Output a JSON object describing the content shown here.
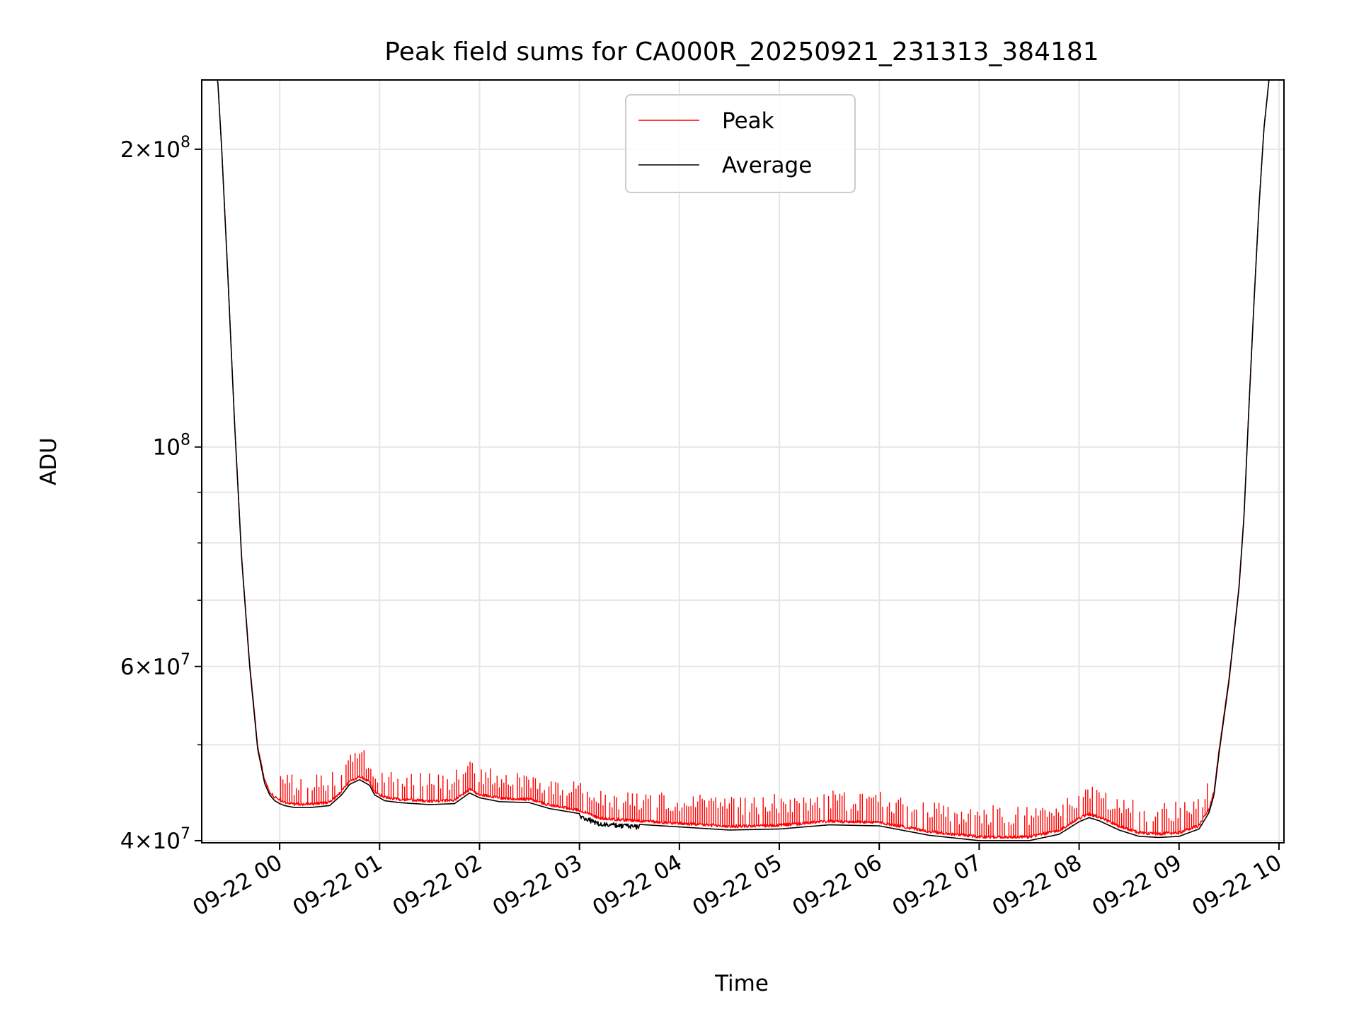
{
  "chart_data": {
    "type": "line",
    "title": "Peak field sums for CA000R_20250921_231313_384181",
    "xlabel": "Time",
    "ylabel": "ADU",
    "yscale": "log",
    "grid": true,
    "legend_position": "upper-center",
    "xlim": [
      -0.78,
      10.05
    ],
    "ylim": [
      39800000,
      235000000
    ],
    "x_unit": "hours since 09-22 00:00",
    "x_ticks": [
      {
        "value": 0,
        "label": "09-22 00"
      },
      {
        "value": 1,
        "label": "09-22 01"
      },
      {
        "value": 2,
        "label": "09-22 02"
      },
      {
        "value": 3,
        "label": "09-22 03"
      },
      {
        "value": 4,
        "label": "09-22 04"
      },
      {
        "value": 5,
        "label": "09-22 05"
      },
      {
        "value": 6,
        "label": "09-22 06"
      },
      {
        "value": 7,
        "label": "09-22 07"
      },
      {
        "value": 8,
        "label": "09-22 08"
      },
      {
        "value": 9,
        "label": "09-22 09"
      },
      {
        "value": 10,
        "label": "09-22 10"
      }
    ],
    "y_ticks_major": [
      {
        "value": 40000000,
        "mant": "4",
        "exp": "7"
      },
      {
        "value": 60000000,
        "mant": "6",
        "exp": "7"
      },
      {
        "value": 100000000,
        "mant": "",
        "exp": "8"
      },
      {
        "value": 200000000,
        "mant": "2",
        "exp": "8"
      }
    ],
    "y_ticks_minor": [
      50000000,
      70000000,
      80000000,
      90000000
    ],
    "series": [
      {
        "name": "Peak",
        "color": "#ff0000",
        "base_offset": 200000,
        "spike_range": [
          1000000,
          3000000
        ],
        "spike_count": 480
      },
      {
        "name": "Average",
        "color": "#000000",
        "x": [
          -0.78,
          -0.62,
          -0.58,
          -0.52,
          -0.45,
          -0.38,
          -0.3,
          -0.22,
          -0.15,
          -0.1,
          -0.05,
          0.0,
          0.05,
          0.15,
          0.3,
          0.5,
          0.62,
          0.7,
          0.8,
          0.9,
          0.95,
          1.05,
          1.2,
          1.5,
          1.75,
          1.9,
          2.0,
          2.2,
          2.5,
          2.7,
          3.0,
          3.2,
          3.5,
          4.0,
          4.5,
          5.0,
          5.5,
          6.0,
          6.5,
          7.0,
          7.5,
          7.8,
          8.0,
          8.1,
          8.2,
          8.4,
          8.6,
          8.8,
          9.0,
          9.2,
          9.3,
          9.35,
          9.4,
          9.5,
          9.6,
          9.65,
          9.7,
          9.75,
          9.8,
          9.85,
          9.9,
          10.05
        ],
        "values": [
          235000000,
          235000000,
          200000000,
          150000000,
          105000000,
          77000000,
          60000000,
          49500000,
          45700000,
          44500000,
          43900000,
          43600000,
          43400000,
          43200000,
          43200000,
          43400000,
          44500000,
          45600000,
          46100000,
          45500000,
          44500000,
          43900000,
          43700000,
          43500000,
          43600000,
          44700000,
          44200000,
          43800000,
          43700000,
          43100000,
          42600000,
          41800000,
          41600000,
          41300000,
          41000000,
          41100000,
          41500000,
          41400000,
          40500000,
          40000000,
          40000000,
          40600000,
          41800000,
          42200000,
          41900000,
          41000000,
          40400000,
          40300000,
          40400000,
          41100000,
          42700000,
          44500000,
          49000000,
          58000000,
          72000000,
          85000000,
          110000000,
          140000000,
          175000000,
          210000000,
          235000000,
          235000000
        ]
      }
    ]
  }
}
